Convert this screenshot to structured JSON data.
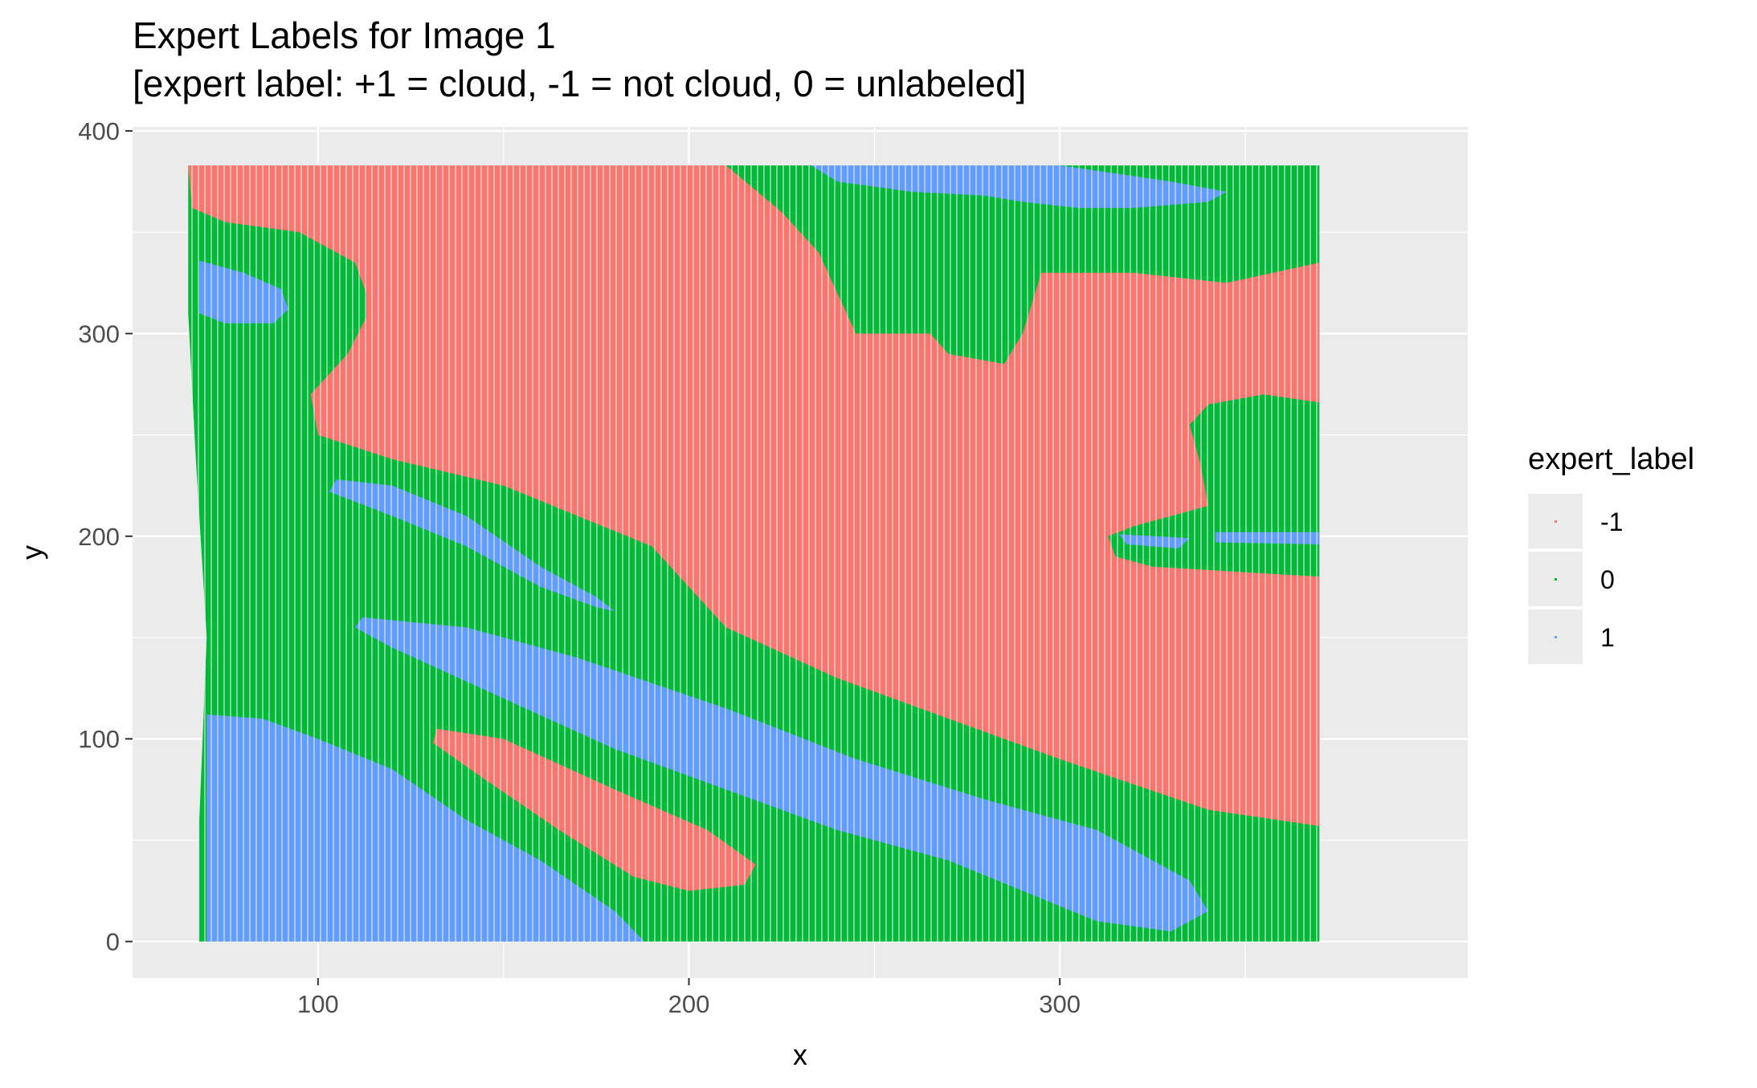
{
  "chart_data": {
    "type": "heatmap",
    "title": "Expert Labels for Image 1",
    "subtitle": "[expert label: +1 = cloud, -1 = not cloud, 0 = unlabeled]",
    "xlabel": "x",
    "ylabel": "y",
    "xlim": [
      50,
      410
    ],
    "ylim": [
      -18,
      402
    ],
    "x_ticks": [
      100,
      200,
      300
    ],
    "y_ticks": [
      0,
      100,
      200,
      300,
      400
    ],
    "x_tick_labels": [
      "100",
      "200",
      "300"
    ],
    "y_tick_labels": [
      "0",
      "100",
      "200",
      "300",
      "400"
    ],
    "legend": {
      "title": "expert_label",
      "placement": "right",
      "entries": [
        {
          "label": "-1",
          "value": -1,
          "color": "#F8766D"
        },
        {
          "label": "0",
          "value": 0,
          "color": "#00BA38"
        },
        {
          "label": "1",
          "value": 1,
          "color": "#619CFF"
        }
      ]
    },
    "panel_background": "#EBEBEB",
    "grid": true,
    "regions": [
      {
        "label": 0,
        "description": "background unlabeled area",
        "points": [
          [
            65,
            383
          ],
          [
            370,
            383
          ],
          [
            370,
            0
          ],
          [
            68,
            0
          ],
          [
            68,
            60
          ],
          [
            70,
            150
          ],
          [
            67,
            240
          ],
          [
            65,
            310
          ]
        ]
      },
      {
        "label": -1,
        "points": [
          [
            65,
            383
          ],
          [
            210,
            383
          ],
          [
            225,
            360
          ],
          [
            235,
            340
          ],
          [
            240,
            320
          ],
          [
            245,
            300
          ],
          [
            255,
            300
          ],
          [
            265,
            300
          ],
          [
            270,
            290
          ],
          [
            285,
            285
          ],
          [
            290,
            300
          ],
          [
            295,
            330
          ],
          [
            320,
            330
          ],
          [
            345,
            325
          ],
          [
            370,
            335
          ],
          [
            370,
            266
          ],
          [
            355,
            270
          ],
          [
            340,
            265
          ],
          [
            335,
            255
          ],
          [
            338,
            235
          ],
          [
            340,
            215
          ],
          [
            320,
            205
          ],
          [
            313,
            200
          ],
          [
            315,
            190
          ],
          [
            325,
            185
          ],
          [
            370,
            180
          ],
          [
            370,
            57
          ],
          [
            340,
            65
          ],
          [
            300,
            90
          ],
          [
            270,
            110
          ],
          [
            240,
            130
          ],
          [
            210,
            155
          ],
          [
            190,
            195
          ],
          [
            150,
            225
          ],
          [
            120,
            238
          ],
          [
            100,
            250
          ],
          [
            98,
            270
          ],
          [
            108,
            290
          ],
          [
            113,
            308
          ],
          [
            113,
            320
          ],
          [
            110,
            335
          ],
          [
            95,
            350
          ],
          [
            75,
            355
          ],
          [
            66,
            362
          ]
        ]
      },
      {
        "label": 1,
        "points": [
          [
            68,
            336
          ],
          [
            80,
            330
          ],
          [
            90,
            322
          ],
          [
            92,
            312
          ],
          [
            88,
            305
          ],
          [
            75,
            305
          ],
          [
            68,
            310
          ]
        ]
      },
      {
        "label": 1,
        "points": [
          [
            105,
            228
          ],
          [
            120,
            225
          ],
          [
            140,
            210
          ],
          [
            160,
            185
          ],
          [
            175,
            170
          ],
          [
            180,
            163
          ],
          [
            175,
            165
          ],
          [
            160,
            175
          ],
          [
            140,
            195
          ],
          [
            120,
            210
          ],
          [
            103,
            222
          ]
        ]
      },
      {
        "label": 1,
        "points": [
          [
            112,
            160
          ],
          [
            140,
            155
          ],
          [
            170,
            140
          ],
          [
            210,
            115
          ],
          [
            245,
            90
          ],
          [
            280,
            70
          ],
          [
            310,
            55
          ],
          [
            335,
            30
          ],
          [
            340,
            15
          ],
          [
            330,
            5
          ],
          [
            310,
            10
          ],
          [
            290,
            25
          ],
          [
            270,
            40
          ],
          [
            240,
            55
          ],
          [
            210,
            75
          ],
          [
            180,
            95
          ],
          [
            150,
            120
          ],
          [
            120,
            145
          ],
          [
            110,
            155
          ]
        ]
      },
      {
        "label": -1,
        "points": [
          [
            132,
            105
          ],
          [
            150,
            100
          ],
          [
            180,
            75
          ],
          [
            205,
            55
          ],
          [
            218,
            38
          ],
          [
            215,
            28
          ],
          [
            200,
            25
          ],
          [
            185,
            32
          ],
          [
            165,
            55
          ],
          [
            145,
            80
          ],
          [
            131,
            98
          ]
        ]
      },
      {
        "label": 1,
        "points": [
          [
            70,
            112
          ],
          [
            85,
            110
          ],
          [
            100,
            100
          ],
          [
            120,
            85
          ],
          [
            140,
            60
          ],
          [
            160,
            40
          ],
          [
            180,
            15
          ],
          [
            188,
            0
          ],
          [
            70,
            0
          ]
        ]
      },
      {
        "label": 1,
        "points": [
          [
            233,
            383
          ],
          [
            300,
            383
          ],
          [
            330,
            375
          ],
          [
            345,
            370
          ],
          [
            340,
            365
          ],
          [
            320,
            362
          ],
          [
            305,
            362
          ],
          [
            290,
            365
          ],
          [
            280,
            368
          ],
          [
            260,
            370
          ],
          [
            240,
            375
          ]
        ]
      },
      {
        "label": 1,
        "points": [
          [
            342,
            202
          ],
          [
            370,
            202
          ],
          [
            370,
            196
          ],
          [
            342,
            197
          ]
        ]
      },
      {
        "label": 1,
        "points": [
          [
            316,
            201
          ],
          [
            335,
            199
          ],
          [
            332,
            194
          ],
          [
            318,
            196
          ]
        ]
      }
    ]
  }
}
